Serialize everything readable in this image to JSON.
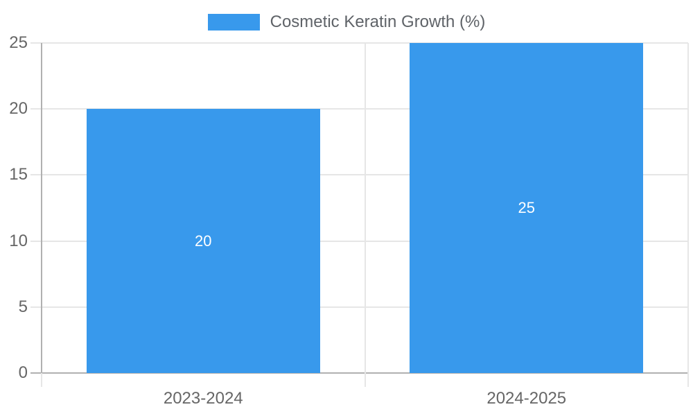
{
  "legend": {
    "series_label": "Cosmetic Keratin Growth (%)"
  },
  "colors": {
    "bar": "#3899ec",
    "grid": "#e6e6e6",
    "axis": "#b0b0b0",
    "axis_text": "#666666",
    "legend_text": "#5f6368",
    "bar_label_text": "#ffffff",
    "background": "#ffffff"
  },
  "chart_data": {
    "type": "bar",
    "categories": [
      "2023-2024",
      "2024-2025"
    ],
    "series": [
      {
        "name": "Cosmetic Keratin Growth (%)",
        "values": [
          20,
          25
        ]
      }
    ],
    "data_labels": [
      "20",
      "25"
    ],
    "title": "",
    "xlabel": "",
    "ylabel": "",
    "ylim": [
      0,
      25
    ],
    "yticks": [
      0,
      5,
      10,
      15,
      20,
      25
    ],
    "grid": true,
    "legend_position": "top-center",
    "bar_label_position": "center-inside"
  }
}
